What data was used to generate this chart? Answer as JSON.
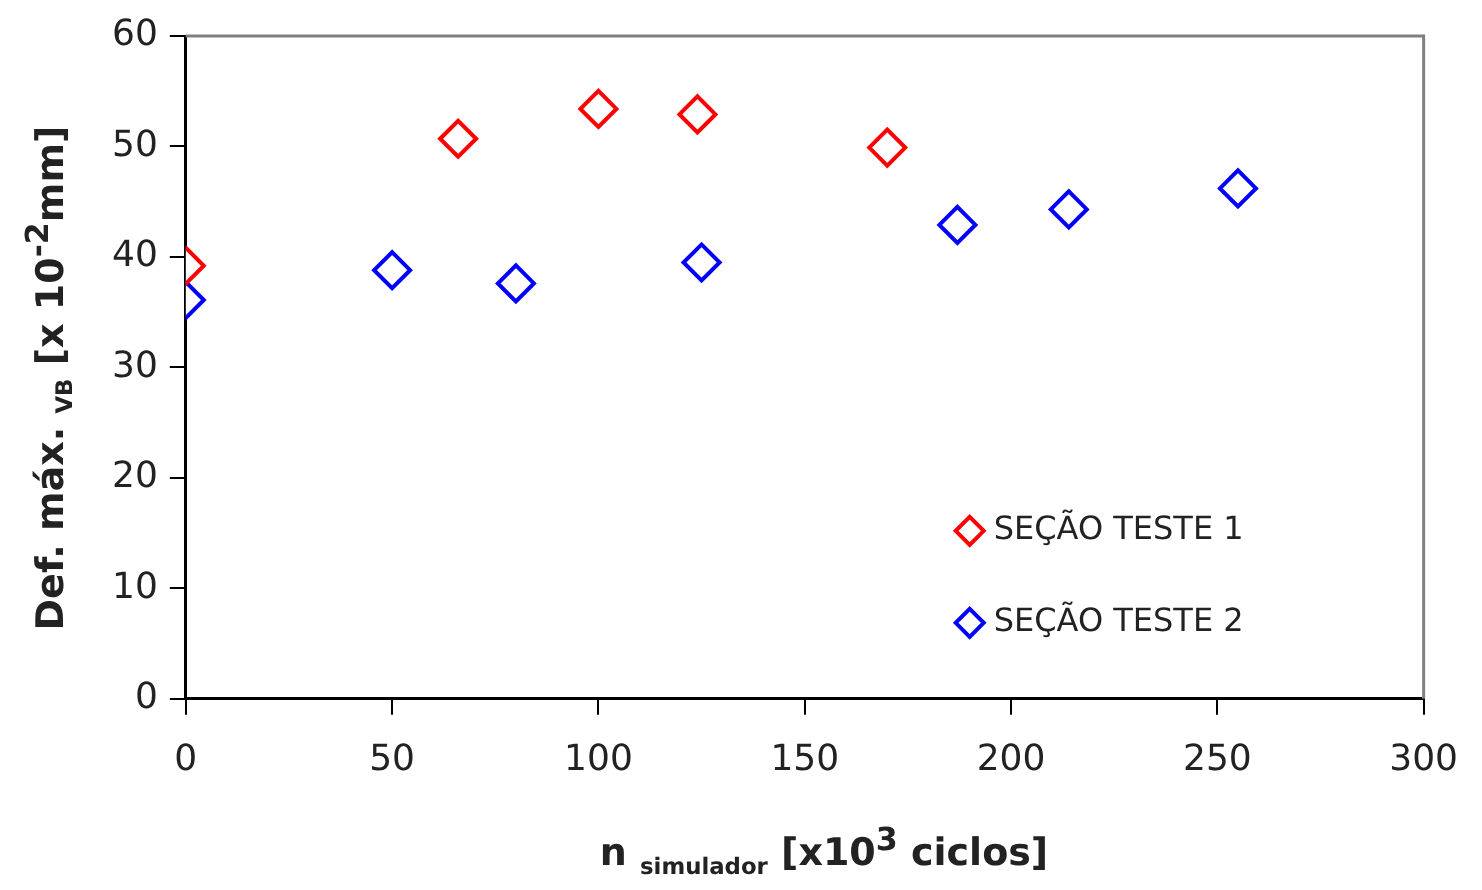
{
  "chart_data": {
    "type": "scatter",
    "xlabel": "n $_{simulador}$ [x10$^{3}$ ciclos]",
    "ylabel": "Def. máx. $_{VB}$ [x 10$^{-2}$mm]",
    "xlim": [
      0,
      300
    ],
    "xticks": [
      0,
      50,
      100,
      150,
      200,
      250,
      300
    ],
    "ylim": [
      0,
      60
    ],
    "yticks": [
      0,
      10,
      20,
      30,
      40,
      50,
      60
    ],
    "grid": false,
    "legend": "bottom right",
    "marker": "diamond",
    "series": [
      {
        "name": "SEÇÃO TESTE 1",
        "color": "#ff0000",
        "x": [
          0,
          66,
          100,
          124,
          170
        ],
        "values": [
          39.2,
          50.7,
          53.4,
          52.9,
          49.9
        ]
      },
      {
        "name": "SEÇÃO TESTE 2",
        "color": "#0000ff",
        "x": [
          0,
          50,
          80,
          125,
          187,
          214,
          255
        ],
        "values": [
          36.1,
          38.8,
          37.6,
          39.5,
          42.9,
          44.3,
          46.2
        ]
      }
    ]
  }
}
